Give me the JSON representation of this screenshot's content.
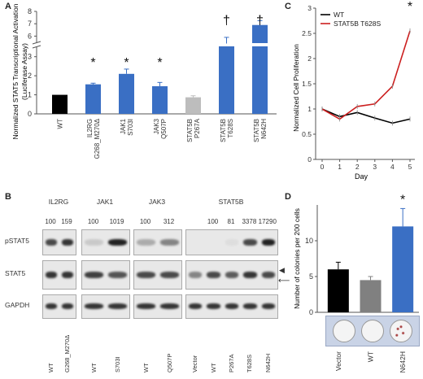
{
  "panels": {
    "a": "A",
    "b": "B",
    "c": "C",
    "d": "D"
  },
  "panel_a": {
    "ylabel_line1": "Normalized STAT5 Transcriptional Activation",
    "ylabel_line2": "(Luciferase Assay)",
    "chart_data": {
      "type": "bar",
      "categories": [
        "WT",
        "IL2RG G268_M270Δ",
        "JAK1 S703I",
        "JAK3 Q507P",
        "STAT5B P267A",
        "STAT5B T628S",
        "STAT5B N642H"
      ],
      "category_lines": [
        [
          "WT"
        ],
        [
          "IL2RG",
          "G268_M270Δ"
        ],
        [
          "JAK1",
          "S703I"
        ],
        [
          "JAK3",
          "Q507P"
        ],
        [
          "STAT5B",
          "P267A"
        ],
        [
          "STAT5B",
          "T628S"
        ],
        [
          "STAT5B",
          "N642H"
        ]
      ],
      "values": [
        1.0,
        1.55,
        2.1,
        1.45,
        0.87,
        5.4,
        6.9
      ],
      "errors": [
        0.0,
        0.06,
        0.25,
        0.2,
        0.08,
        0.5,
        0.35
      ],
      "colors": [
        "#000000",
        "#3a6fc4",
        "#3a6fc4",
        "#3a6fc4",
        "#bdbdbd",
        "#3a6fc4",
        "#3a6fc4"
      ],
      "markers": [
        "",
        "*",
        "*",
        "*",
        "",
        "†",
        "†"
      ],
      "yticks": [
        0,
        1,
        2,
        3,
        6,
        7,
        8
      ],
      "axis_break": [
        3.5,
        5.5
      ],
      "ylim": [
        0,
        8
      ]
    }
  },
  "panel_b": {
    "groups": [
      {
        "title": "IL2RG",
        "nums": [
          "100",
          "159"
        ],
        "lanes": [
          "WT",
          "G268_M270Δ"
        ]
      },
      {
        "title": "JAK1",
        "nums": [
          "100",
          "1019"
        ],
        "lanes": [
          "WT",
          "S703I"
        ]
      },
      {
        "title": "JAK3",
        "nums": [
          "100",
          "312"
        ],
        "lanes": [
          "WT",
          "Q507P"
        ]
      },
      {
        "title": "STAT5B",
        "nums": [
          "100",
          "81",
          "3378",
          "17290"
        ],
        "lanes": [
          "Vector",
          "WT",
          "P267A",
          "T628S",
          "N642H"
        ]
      }
    ],
    "rows": [
      "pSTAT5",
      "STAT5",
      "GAPDH"
    ],
    "arrowhead": "◀",
    "arrow": "⟵"
  },
  "panel_c": {
    "ylabel": "Normalized Cell Proliferation",
    "xlabel": "Day",
    "marker": "*",
    "chart_data": {
      "type": "line",
      "x": [
        0,
        1,
        2,
        3,
        4,
        5
      ],
      "series": [
        {
          "name": "WT",
          "values": [
            1.0,
            0.85,
            0.93,
            0.82,
            0.72,
            0.8
          ],
          "color": "#000000"
        },
        {
          "name": "STAT5B T628S",
          "values": [
            1.0,
            0.8,
            1.05,
            1.1,
            1.45,
            2.55
          ],
          "color": "#cc1f1f"
        }
      ],
      "yticks": [
        0,
        0.5,
        1,
        1.5,
        2,
        2.5,
        3
      ],
      "ylim": [
        0,
        3
      ],
      "legend": "top-left"
    }
  },
  "panel_d": {
    "ylabel": "Number of colonies per 200 cells",
    "chart_data": {
      "type": "bar",
      "categories": [
        "Vector",
        "WT",
        "N642H"
      ],
      "values": [
        6.0,
        4.5,
        12.0
      ],
      "errors": [
        1.0,
        0.5,
        2.5
      ],
      "colors": [
        "#000000",
        "#808080",
        "#3a6fc4"
      ],
      "markers": [
        "",
        "",
        "*"
      ],
      "yticks": [
        0,
        5,
        10
      ],
      "ylim": [
        0,
        15
      ]
    }
  }
}
